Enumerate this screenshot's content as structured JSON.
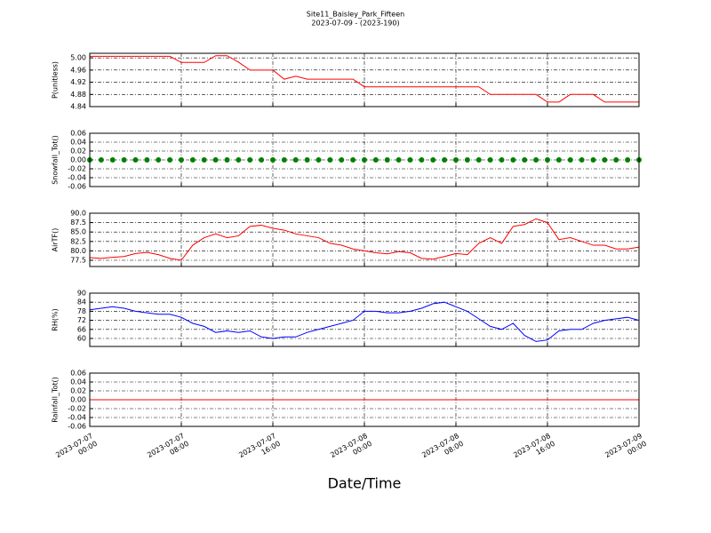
{
  "chart_data": {
    "type": "line",
    "title": "Site11_Baisley_Park_Fifteen",
    "subtitle": "2023-07-09 - (2023-190)",
    "xlabel": "Date/Time",
    "grid": true,
    "xlim": [
      "2023-07-07 00:00",
      "2023-07-09 00:00"
    ],
    "xticks": [
      {
        "value": "2023-07-07 00:00",
        "label": "2023-07-07\n00:00"
      },
      {
        "value": "2023-07-07 08:00",
        "label": "2023-07-07\n08:00"
      },
      {
        "value": "2023-07-07 16:00",
        "label": "2023-07-07\n16:00"
      },
      {
        "value": "2023-07-08 00:00",
        "label": "2023-07-08\n00:00"
      },
      {
        "value": "2023-07-08 08:00",
        "label": "2023-07-08\n08:00"
      },
      {
        "value": "2023-07-08 16:00",
        "label": "2023-07-08\n16:00"
      },
      {
        "value": "2023-07-09 00:00",
        "label": "2023-07-09\n00:00"
      }
    ],
    "x": [
      "2023-07-07 00:00",
      "2023-07-07 01:00",
      "2023-07-07 02:00",
      "2023-07-07 03:00",
      "2023-07-07 04:00",
      "2023-07-07 05:00",
      "2023-07-07 06:00",
      "2023-07-07 07:00",
      "2023-07-07 08:00",
      "2023-07-07 09:00",
      "2023-07-07 10:00",
      "2023-07-07 11:00",
      "2023-07-07 12:00",
      "2023-07-07 13:00",
      "2023-07-07 14:00",
      "2023-07-07 15:00",
      "2023-07-07 16:00",
      "2023-07-07 17:00",
      "2023-07-07 18:00",
      "2023-07-07 19:00",
      "2023-07-07 20:00",
      "2023-07-07 21:00",
      "2023-07-07 22:00",
      "2023-07-07 23:00",
      "2023-07-08 00:00",
      "2023-07-08 01:00",
      "2023-07-08 02:00",
      "2023-07-08 03:00",
      "2023-07-08 04:00",
      "2023-07-08 05:00",
      "2023-07-08 06:00",
      "2023-07-08 07:00",
      "2023-07-08 08:00",
      "2023-07-08 09:00",
      "2023-07-08 10:00",
      "2023-07-08 11:00",
      "2023-07-08 12:00",
      "2023-07-08 13:00",
      "2023-07-08 14:00",
      "2023-07-08 15:00",
      "2023-07-08 16:00",
      "2023-07-08 17:00",
      "2023-07-08 18:00",
      "2023-07-08 19:00",
      "2023-07-08 20:00",
      "2023-07-08 21:00",
      "2023-07-08 22:00",
      "2023-07-08 23:00",
      "2023-07-09 00:00"
    ],
    "panels": [
      {
        "ylabel": "P(unitless)",
        "color": "#ff0000",
        "ylim": [
          4.84,
          5.015
        ],
        "yticks": [
          4.84,
          4.88,
          4.92,
          4.96,
          {
            "value": 5,
            "label": "5.00"
          }
        ],
        "values": [
          5.005,
          5.005,
          5.005,
          5.005,
          5.005,
          5.005,
          5.005,
          5.005,
          4.985,
          4.985,
          4.985,
          5.007,
          5.007,
          4.986,
          4.96,
          4.96,
          4.96,
          4.93,
          4.94,
          4.93,
          4.93,
          4.93,
          4.93,
          4.93,
          4.905,
          4.905,
          4.905,
          4.905,
          4.905,
          4.905,
          4.905,
          4.905,
          4.905,
          4.905,
          4.905,
          4.88,
          4.88,
          4.88,
          4.88,
          4.88,
          4.855,
          4.855,
          4.88,
          4.88,
          4.88,
          4.855,
          4.855,
          4.855,
          4.855
        ]
      },
      {
        "ylabel": "Snowfall_Tot()",
        "color": "#008000",
        "marker": "o",
        "ylim": [
          -0.06,
          0.06
        ],
        "yticks": [
          -0.06,
          -0.04,
          -0.02,
          {
            "value": 0,
            "label": "0.00"
          },
          0.02,
          0.04,
          0.06
        ],
        "values": [
          0,
          0,
          0,
          0,
          0,
          0,
          0,
          0,
          0,
          0,
          0,
          0,
          0,
          0,
          0,
          0,
          0,
          0,
          0,
          0,
          0,
          0,
          0,
          0,
          0,
          0,
          0,
          0,
          0,
          0,
          0,
          0,
          0,
          0,
          0,
          0,
          0,
          0,
          0,
          0,
          0,
          0,
          0,
          0,
          0,
          0,
          0,
          0,
          0
        ]
      },
      {
        "ylabel": "AirTF()",
        "color": "#ff0000",
        "ylim": [
          75.85,
          90
        ],
        "yticks": [
          77.5,
          {
            "value": 80,
            "label": "80.0"
          },
          82.5,
          {
            "value": 85,
            "label": "85.0"
          },
          87.5,
          {
            "value": 90,
            "label": "90.0"
          }
        ],
        "values": [
          78.2,
          78.0,
          78.3,
          78.5,
          79.3,
          79.6,
          79.0,
          78.0,
          77.5,
          81.5,
          83.5,
          84.5,
          83.5,
          84.0,
          86.5,
          86.8,
          86.0,
          85.5,
          84.5,
          84.0,
          83.5,
          82.0,
          81.5,
          80.5,
          80.0,
          79.5,
          79.2,
          79.8,
          79.5,
          78.0,
          77.8,
          78.5,
          79.3,
          79.0,
          82.0,
          83.5,
          82.0,
          86.5,
          87.0,
          88.5,
          87.5,
          83.0,
          83.5,
          82.5,
          81.5,
          81.5,
          80.5,
          80.5,
          81.0
        ]
      },
      {
        "ylabel": "RH(%)",
        "color": "#0000ff",
        "ylim": [
          54.7,
          90
        ],
        "yticks": [
          60,
          66,
          72,
          78,
          84,
          90
        ],
        "values": [
          79,
          80,
          81,
          80,
          78,
          77,
          76,
          76,
          74,
          70,
          68,
          64,
          65,
          64,
          65,
          61,
          60,
          61,
          61,
          64,
          66,
          68,
          70,
          72,
          78,
          78,
          77,
          77,
          78,
          80,
          83,
          84,
          81,
          78,
          73,
          68,
          66,
          70,
          62,
          58,
          59,
          65,
          66,
          66,
          70,
          72,
          73,
          74,
          72
        ]
      },
      {
        "ylabel": "Rainfall_Tot()",
        "color": "#ff0000",
        "ylim": [
          -0.06,
          0.06
        ],
        "yticks": [
          -0.06,
          -0.04,
          -0.02,
          {
            "value": 0,
            "label": "0.00"
          },
          0.02,
          0.04,
          0.06
        ],
        "values": [
          0,
          0,
          0,
          0,
          0,
          0,
          0,
          0,
          0,
          0,
          0,
          0,
          0,
          0,
          0,
          0,
          0,
          0,
          0,
          0,
          0,
          0,
          0,
          0,
          0,
          0,
          0,
          0,
          0,
          0,
          0,
          0,
          0,
          0,
          0,
          0,
          0,
          0,
          0,
          0,
          0,
          0,
          0,
          0,
          0,
          0,
          0,
          0,
          0
        ]
      }
    ]
  }
}
